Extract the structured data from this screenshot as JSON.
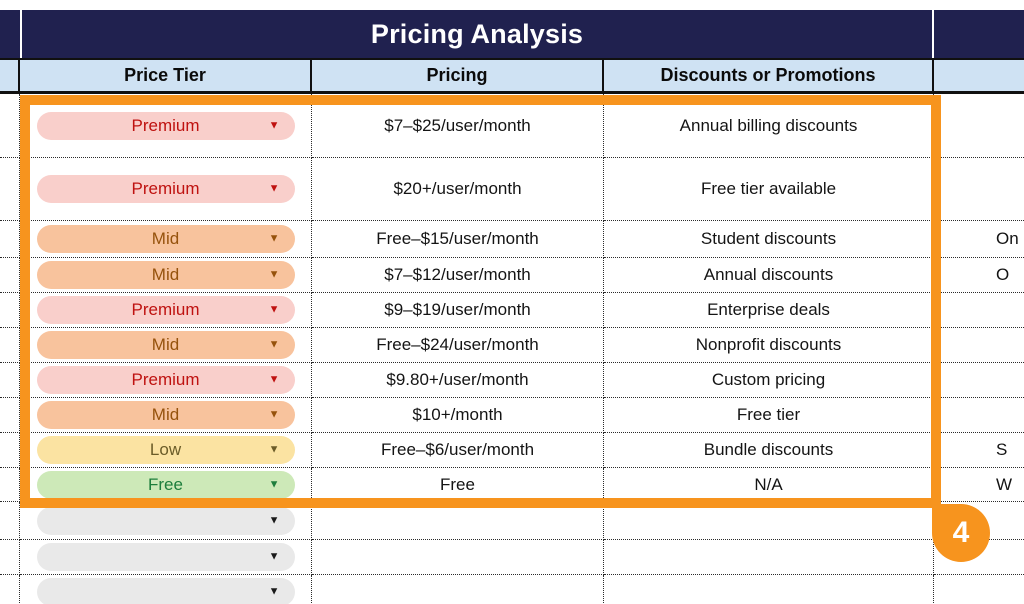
{
  "header": {
    "title": "Pricing Analysis"
  },
  "columns": {
    "tier": "Price Tier",
    "pricing": "Pricing",
    "discounts": "Discounts or Promotions"
  },
  "rows": [
    {
      "tier": "Premium",
      "pricing": "$7–$25/user/month",
      "discounts": "Annual billing discounts",
      "extra": ""
    },
    {
      "tier": "Premium",
      "pricing": "$20+/user/month",
      "discounts": "Free tier available",
      "extra": ""
    },
    {
      "tier": "Mid",
      "pricing": "Free–$15/user/month",
      "discounts": "Student discounts",
      "extra": "On"
    },
    {
      "tier": "Mid",
      "pricing": "$7–$12/user/month",
      "discounts": "Annual discounts",
      "extra": "O"
    },
    {
      "tier": "Premium",
      "pricing": "$9–$19/user/month",
      "discounts": "Enterprise deals",
      "extra": ""
    },
    {
      "tier": "Mid",
      "pricing": "Free–$24/user/month",
      "discounts": "Nonprofit discounts",
      "extra": ""
    },
    {
      "tier": "Premium",
      "pricing": "$9.80+/user/month",
      "discounts": "Custom pricing",
      "extra": ""
    },
    {
      "tier": "Mid",
      "pricing": "$10+/month",
      "discounts": "Free tier",
      "extra": ""
    },
    {
      "tier": "Low",
      "pricing": "Free–$6/user/month",
      "discounts": "Bundle discounts",
      "extra": "S"
    },
    {
      "tier": "Free",
      "pricing": "Free",
      "discounts": "N/A",
      "extra": "W"
    },
    {
      "tier": "",
      "pricing": "",
      "discounts": "",
      "extra": ""
    },
    {
      "tier": "",
      "pricing": "",
      "discounts": "",
      "extra": ""
    },
    {
      "tier": "",
      "pricing": "",
      "discounts": "",
      "extra": ""
    }
  ],
  "tier_styles": {
    "Premium": {
      "bg": "#f9cfcb",
      "fg": "#bf1210"
    },
    "Mid": {
      "bg": "#f8c39d",
      "fg": "#96520c"
    },
    "Low": {
      "bg": "#fbe3a2",
      "fg": "#6b5c28"
    },
    "Free": {
      "bg": "#cde9b8",
      "fg": "#1d7e3c"
    },
    "empty": {
      "bg": "#e9e9e9",
      "fg": "#1a1a1a"
    }
  },
  "annotation": {
    "badge": "4"
  },
  "theme": {
    "navy": "#20214f",
    "header_blue": "#cfe2f3",
    "highlight_orange": "#f7941e",
    "dropdown_arrow": "▼"
  }
}
